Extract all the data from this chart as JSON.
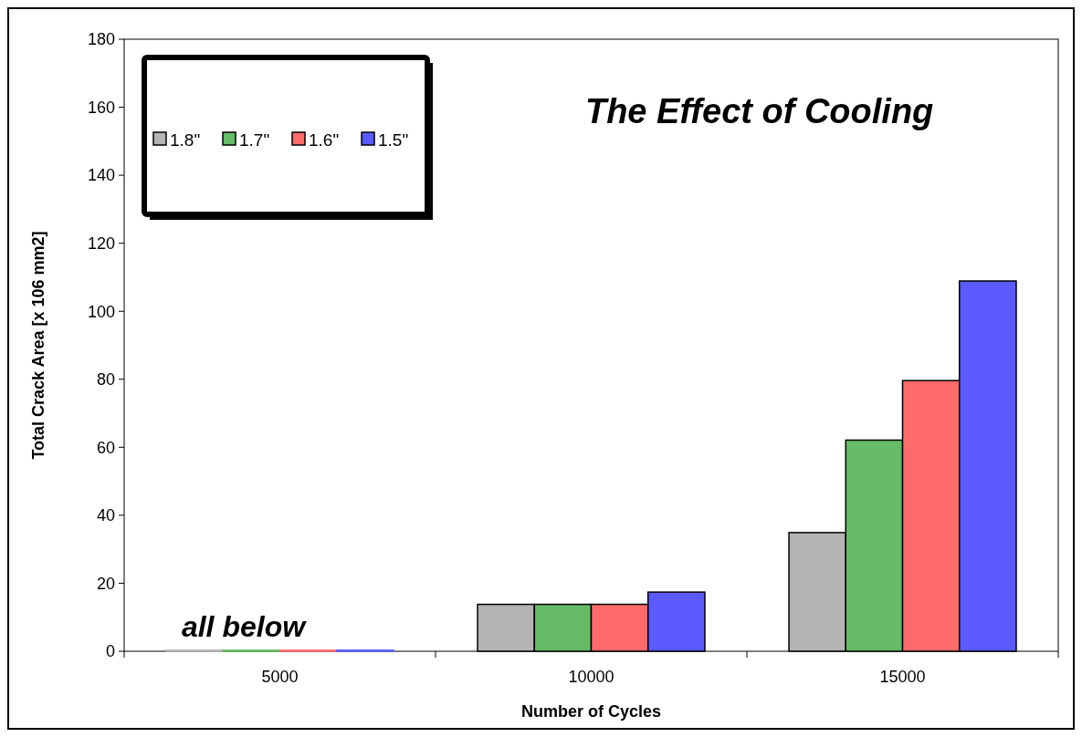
{
  "chart_data": {
    "type": "bar",
    "title": "The Effect of Cooling",
    "xlabel": "Number of Cycles",
    "ylabel": "Total Crack Area [x 106 mm2]",
    "categories": [
      "5000",
      "10000",
      "15000"
    ],
    "series": [
      {
        "name": "1.8\"",
        "color": "#b4b4b4",
        "values": [
          0.3,
          13.8,
          34.9
        ]
      },
      {
        "name": "1.7\"",
        "color": "#66bb66",
        "values": [
          0.3,
          13.8,
          62.1
        ]
      },
      {
        "name": "1.6\"",
        "color": "#ff6a6a",
        "values": [
          0.3,
          13.8,
          79.6
        ]
      },
      {
        "name": "1.5\"",
        "color": "#5a5aff",
        "values": [
          0.3,
          17.4,
          108.9
        ]
      }
    ],
    "ylim": [
      0,
      180
    ],
    "yticks": [
      0,
      20,
      40,
      60,
      80,
      100,
      120,
      140,
      160,
      180
    ],
    "grid": false,
    "legend": "top left",
    "annotations": [
      {
        "text": "all below",
        "x": "5000",
        "y": 0
      }
    ]
  }
}
